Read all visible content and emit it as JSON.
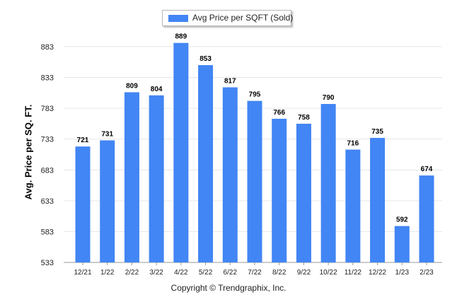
{
  "legend": {
    "label": "Avg Price per SQFT (Sold)"
  },
  "footer": {
    "copyright": "Copyright © Trendgraphix, Inc."
  },
  "colors": {
    "bar": "#4285f4",
    "grid": "#e6e6e6",
    "axis": "#999999"
  },
  "chart_data": {
    "type": "bar",
    "title": "",
    "xlabel": "",
    "ylabel": "Avg. Price per SQ. FT.",
    "categories": [
      "12/21",
      "1/22",
      "2/22",
      "3/22",
      "4/22",
      "5/22",
      "6/22",
      "7/22",
      "8/22",
      "9/22",
      "10/22",
      "11/22",
      "12/22",
      "1/23",
      "2/23"
    ],
    "series": [
      {
        "name": "Avg Price per SQFT (Sold)",
        "values": [
          721,
          731,
          809,
          804,
          889,
          853,
          817,
          795,
          766,
          758,
          790,
          716,
          735,
          592,
          674
        ]
      }
    ],
    "yticks": [
      533,
      583,
      633,
      683,
      733,
      783,
      833,
      883
    ],
    "ylim": [
      533,
      907
    ],
    "grid": true,
    "legend_position": "top-center"
  }
}
